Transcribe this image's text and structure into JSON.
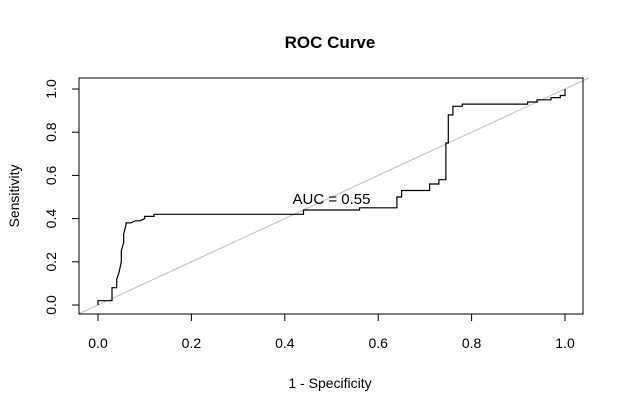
{
  "chart_data": {
    "type": "line",
    "title": "ROC Curve",
    "xlabel": "1 - Specificity",
    "ylabel": "Sensitivity",
    "xlim": [
      0,
      1
    ],
    "ylim": [
      0,
      1
    ],
    "xticks": [
      "0.0",
      "0.2",
      "0.4",
      "0.6",
      "0.8",
      "1.0"
    ],
    "yticks": [
      "0.0",
      "0.2",
      "0.4",
      "0.6",
      "0.8",
      "1.0"
    ],
    "xtick_values": [
      0,
      0.2,
      0.4,
      0.6,
      0.8,
      1.0
    ],
    "ytick_values": [
      0,
      0.2,
      0.4,
      0.6,
      0.8,
      1.0
    ],
    "annotation": "AUC = 0.55",
    "annotation_at": [
      0.5,
      0.49
    ],
    "diagonal_color": "#bebebe",
    "curve_color": "#000000",
    "series": [
      {
        "x": [
          0.0,
          0.0,
          0.03,
          0.03,
          0.04,
          0.04,
          0.045,
          0.05,
          0.05,
          0.055,
          0.055,
          0.06,
          0.06,
          0.07,
          0.08,
          0.09,
          0.1,
          0.1,
          0.12,
          0.12,
          0.44,
          0.44,
          0.56,
          0.56,
          0.64,
          0.64,
          0.65,
          0.65,
          0.71,
          0.71,
          0.73,
          0.73,
          0.745,
          0.745,
          0.75,
          0.75,
          0.76,
          0.76,
          0.78,
          0.78,
          0.92,
          0.92,
          0.94,
          0.94,
          0.97,
          0.97,
          0.99,
          0.99,
          1.0,
          1.0
        ],
        "y": [
          0.0,
          0.02,
          0.02,
          0.08,
          0.08,
          0.12,
          0.15,
          0.2,
          0.25,
          0.29,
          0.33,
          0.37,
          0.38,
          0.38,
          0.39,
          0.39,
          0.4,
          0.41,
          0.41,
          0.42,
          0.42,
          0.44,
          0.44,
          0.45,
          0.45,
          0.5,
          0.5,
          0.53,
          0.53,
          0.56,
          0.56,
          0.58,
          0.58,
          0.75,
          0.75,
          0.88,
          0.88,
          0.92,
          0.92,
          0.93,
          0.93,
          0.94,
          0.94,
          0.95,
          0.95,
          0.96,
          0.96,
          0.97,
          0.97,
          1.0
        ]
      }
    ]
  }
}
